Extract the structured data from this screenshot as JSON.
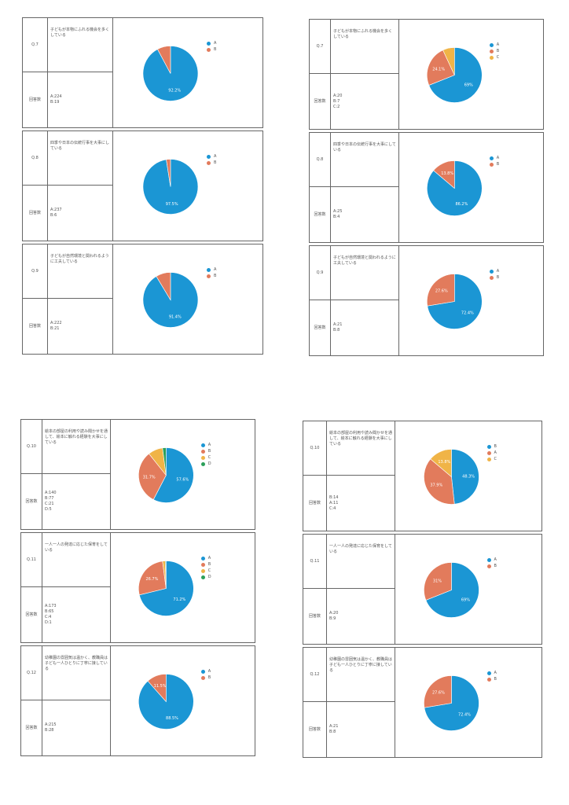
{
  "labels": {
    "answers": "回答数"
  },
  "colors": {
    "A": "#1b96d4",
    "B": "#e27b5c",
    "C": "#f0b447",
    "D": "#2ca05a"
  },
  "groups": [
    {
      "cards": [
        {
          "q": "Q.7",
          "text": "子どもが本物にふれる機会を多くしている",
          "counts": "A:224\nB:19",
          "series": [
            {
              "key": "A",
              "value": 224,
              "label": "92.2%"
            },
            {
              "key": "B",
              "value": 19,
              "label": ""
            }
          ]
        },
        {
          "q": "Q.8",
          "text": "四季や日本の伝統行事を大事にしている",
          "counts": "A:237\nB:6",
          "series": [
            {
              "key": "A",
              "value": 237,
              "label": "97.5%"
            },
            {
              "key": "B",
              "value": 6,
              "label": ""
            }
          ]
        },
        {
          "q": "Q.9",
          "text": "子どもが自然環境と関われるように工夫している",
          "counts": "A:222\nB:21",
          "series": [
            {
              "key": "A",
              "value": 222,
              "label": "91.4%"
            },
            {
              "key": "B",
              "value": 21,
              "label": ""
            }
          ]
        }
      ]
    },
    {
      "cards": [
        {
          "q": "Q.7",
          "text": "子どもが本物にふれる機会を多くしている",
          "counts": "A:20\nB:7\nC:2",
          "series": [
            {
              "key": "A",
              "value": 20,
              "label": "69%"
            },
            {
              "key": "B",
              "value": 7,
              "label": "24.1%"
            },
            {
              "key": "C",
              "value": 2,
              "label": ""
            }
          ]
        },
        {
          "q": "Q.8",
          "text": "四季や日本の伝統行事を大事にしている",
          "counts": "A:25\nB:4",
          "series": [
            {
              "key": "A",
              "value": 25,
              "label": "86.2%"
            },
            {
              "key": "B",
              "value": 4,
              "label": "13.8%"
            }
          ]
        },
        {
          "q": "Q.9",
          "text": "子どもが自然環境と関われるように工夫している",
          "counts": "A:21\nB:8",
          "series": [
            {
              "key": "A",
              "value": 21,
              "label": "72.4%"
            },
            {
              "key": "B",
              "value": 8,
              "label": "27.6%"
            }
          ]
        }
      ]
    },
    {
      "cards": [
        {
          "q": "Q.10",
          "text": "絵本の部屋の利用や読み聞かせを通して、絵本に触れる経験を大事にしている",
          "counts": "A:140\nB:77\nC:21\nD:5",
          "series": [
            {
              "key": "A",
              "value": 140,
              "label": "57.6%"
            },
            {
              "key": "B",
              "value": 77,
              "label": "31.7%"
            },
            {
              "key": "C",
              "value": 21,
              "label": ""
            },
            {
              "key": "D",
              "value": 5,
              "label": ""
            }
          ]
        },
        {
          "q": "Q.11",
          "text": "一人一人の発達に応じた保育をしている",
          "counts": "A:173\nB:65\nC:4\nD:1",
          "series": [
            {
              "key": "A",
              "value": 173,
              "label": "71.2%"
            },
            {
              "key": "B",
              "value": 65,
              "label": "26.7%"
            },
            {
              "key": "C",
              "value": 4,
              "label": ""
            },
            {
              "key": "D",
              "value": 1,
              "label": ""
            }
          ]
        },
        {
          "q": "Q.12",
          "text": "幼稚園の雰囲気は温かく、教職員は子ども一人ひとりに丁寧に接している",
          "counts": "A:215\nB:28",
          "series": [
            {
              "key": "A",
              "value": 215,
              "label": "88.5%"
            },
            {
              "key": "B",
              "value": 28,
              "label": "11.5%"
            }
          ]
        }
      ]
    },
    {
      "cards": [
        {
          "q": "Q.10",
          "text": "絵本の部屋の利用や読み聞かせを通して、絵本に触れる経験を大事にしている",
          "counts": "B:14\nA:11\nC:4",
          "series": [
            {
              "key": "B",
              "value": 14,
              "label": "48.3%",
              "color": "A"
            },
            {
              "key": "A",
              "value": 11,
              "label": "37.9%",
              "color": "B"
            },
            {
              "key": "C",
              "value": 4,
              "label": "13.8%",
              "color": "C"
            }
          ]
        },
        {
          "q": "Q.11",
          "text": "一人一人の発達に応じた保育をしている",
          "counts": "A:20\nB:9",
          "series": [
            {
              "key": "A",
              "value": 20,
              "label": "69%"
            },
            {
              "key": "B",
              "value": 9,
              "label": "31%"
            }
          ]
        },
        {
          "q": "Q.12",
          "text": "幼稚園の雰囲気は温かく、教職員は子ども一人ひとりに丁寧に接している",
          "counts": "A:21\nB:8",
          "series": [
            {
              "key": "A",
              "value": 21,
              "label": "72.4%"
            },
            {
              "key": "B",
              "value": 8,
              "label": "27.6%"
            }
          ]
        }
      ]
    }
  ]
}
